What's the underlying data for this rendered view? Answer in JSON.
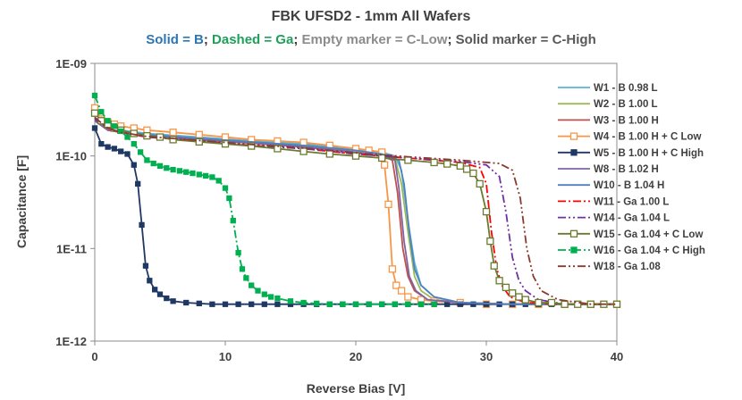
{
  "chart_data": {
    "type": "line",
    "title": "FBK UFSD2 - 1mm  All Wafers",
    "subtitle": [
      {
        "text": "Solid = B",
        "color": "#2e75b6"
      },
      {
        "text": "; ",
        "color": "#333333"
      },
      {
        "text": "Dashed = Ga",
        "color": "#1ea05a"
      },
      {
        "text": "; ",
        "color": "#333333"
      },
      {
        "text": "Empty marker = C-Low",
        "color": "#8c8c8c"
      },
      {
        "text": "; ",
        "color": "#333333"
      },
      {
        "text": "Solid marker = C-High",
        "color": "#595959"
      }
    ],
    "xlabel": "Reverse Bias [V]",
    "ylabel": "Capacitance [F]",
    "xlim": [
      0,
      40
    ],
    "ylim": [
      1e-12,
      1e-09
    ],
    "yscale": "log",
    "x_ticks": [
      0,
      10,
      20,
      30,
      40
    ],
    "x_tick_labels": [
      "0",
      "10",
      "20",
      "30",
      "40"
    ],
    "y_ticks": [
      1e-12,
      1e-11,
      1e-10,
      1e-09
    ],
    "y_tick_labels": [
      "1E-12",
      "1E-11",
      "1E-10",
      "1E-09"
    ],
    "grid": false,
    "legend_position": "right",
    "series": [
      {
        "name": "W1 - B 0.98 L",
        "color": "#5ab4d6",
        "dash": "solid",
        "marker": "none",
        "x": [
          0,
          1,
          2,
          4,
          8,
          12,
          16,
          20,
          22,
          23,
          23.5,
          24,
          24.5,
          25,
          26,
          28,
          32,
          36,
          40
        ],
        "y": [
          2.6e-10,
          2.1e-10,
          1.9e-10,
          1.75e-10,
          1.6e-10,
          1.45e-10,
          1.35e-10,
          1.2e-10,
          1.1e-10,
          1e-10,
          7e-11,
          2e-11,
          7e-12,
          4e-12,
          3e-12,
          2.6e-12,
          2.5e-12,
          2.5e-12,
          2.5e-12
        ]
      },
      {
        "name": "W2 - B 1.00 L",
        "color": "#9bbb59",
        "dash": "solid",
        "marker": "none",
        "x": [
          0,
          1,
          2,
          4,
          8,
          12,
          16,
          20,
          22,
          23,
          23.5,
          24,
          24.5,
          25,
          26,
          28,
          32,
          36,
          40
        ],
        "y": [
          2.5e-10,
          2e-10,
          1.85e-10,
          1.7e-10,
          1.55e-10,
          1.42e-10,
          1.3e-10,
          1.15e-10,
          1.05e-10,
          9.5e-11,
          5e-11,
          1.5e-11,
          5e-12,
          3.5e-12,
          2.8e-12,
          2.6e-12,
          2.5e-12,
          2.5e-12,
          2.5e-12
        ]
      },
      {
        "name": "W3 - B 1.00 H",
        "color": "#c0504d",
        "dash": "solid",
        "marker": "none",
        "x": [
          0,
          1,
          2,
          4,
          8,
          12,
          16,
          20,
          22,
          22.8,
          23.2,
          23.6,
          24,
          24.5,
          25.5,
          28,
          32,
          36,
          40
        ],
        "y": [
          2.4e-10,
          1.9e-10,
          1.8e-10,
          1.65e-10,
          1.5e-10,
          1.38e-10,
          1.25e-10,
          1.1e-10,
          1e-10,
          9e-11,
          4e-11,
          1e-11,
          5e-12,
          3.5e-12,
          2.8e-12,
          2.6e-12,
          2.5e-12,
          2.5e-12,
          2.5e-12
        ]
      },
      {
        "name": "W4 - B 1.00 H + C Low",
        "color": "#f79646",
        "dash": "solid",
        "marker": "square-open",
        "x": [
          0,
          0.5,
          1,
          1.5,
          2,
          3,
          4,
          6,
          8,
          10,
          12,
          14,
          16,
          18,
          20,
          21,
          22,
          22.2,
          22.5,
          22.8,
          23.1,
          23.5,
          24,
          25,
          26,
          28,
          30,
          32,
          34,
          36,
          38,
          40
        ],
        "y": [
          3.3e-10,
          2.5e-10,
          2.3e-10,
          2.2e-10,
          2.1e-10,
          2e-10,
          1.9e-10,
          1.8e-10,
          1.7e-10,
          1.6e-10,
          1.5e-10,
          1.45e-10,
          1.4e-10,
          1.3e-10,
          1.2e-10,
          1.15e-10,
          1.1e-10,
          8e-11,
          3e-11,
          6e-12,
          4e-12,
          3.5e-12,
          3e-12,
          2.8e-12,
          2.7e-12,
          2.6e-12,
          2.5e-12,
          2.5e-12,
          2.5e-12,
          2.5e-12,
          2.5e-12,
          2.5e-12
        ]
      },
      {
        "name": "W5 - B 1.00 H + C High",
        "color": "#1f3864",
        "dash": "solid",
        "marker": "square-filled",
        "x": [
          0,
          0.5,
          1,
          1.5,
          2,
          2.5,
          3,
          3.3,
          3.6,
          3.9,
          4.2,
          4.6,
          5,
          5.5,
          6,
          7,
          8,
          9,
          10,
          11,
          12,
          13,
          14,
          15,
          16,
          17,
          18,
          19,
          20,
          21,
          22,
          23,
          24,
          25,
          26,
          27,
          28,
          29,
          30,
          31,
          32,
          33,
          34,
          35,
          36,
          37,
          38,
          39,
          40
        ],
        "y": [
          2e-10,
          1.35e-10,
          1.25e-10,
          1.2e-10,
          1.12e-10,
          1.05e-10,
          8e-11,
          5e-11,
          1.8e-11,
          6.5e-12,
          4.5e-12,
          3.6e-12,
          3.2e-12,
          2.9e-12,
          2.7e-12,
          2.6e-12,
          2.55e-12,
          2.5e-12,
          2.5e-12,
          2.5e-12,
          2.5e-12,
          2.5e-12,
          2.5e-12,
          2.5e-12,
          2.5e-12,
          2.5e-12,
          2.5e-12,
          2.5e-12,
          2.5e-12,
          2.5e-12,
          2.5e-12,
          2.5e-12,
          2.5e-12,
          2.5e-12,
          2.5e-12,
          2.5e-12,
          2.5e-12,
          2.5e-12,
          2.5e-12,
          2.5e-12,
          2.5e-12,
          2.5e-12,
          2.5e-12,
          2.5e-12,
          2.5e-12,
          2.5e-12,
          2.5e-12,
          2.5e-12,
          2.5e-12
        ]
      },
      {
        "name": "W8 - B 1.02 H",
        "color": "#8064a2",
        "dash": "solid",
        "marker": "none",
        "x": [
          0,
          1,
          2,
          4,
          8,
          12,
          16,
          20,
          22,
          23,
          23.3,
          23.7,
          24.1,
          24.6,
          25.5,
          28,
          32,
          36,
          40
        ],
        "y": [
          2.4e-10,
          1.9e-10,
          1.8e-10,
          1.65e-10,
          1.5e-10,
          1.38e-10,
          1.25e-10,
          1.1e-10,
          1e-10,
          9e-11,
          4.5e-11,
          1.2e-11,
          5e-12,
          3.5e-12,
          2.8e-12,
          2.6e-12,
          2.5e-12,
          2.5e-12,
          2.5e-12
        ]
      },
      {
        "name": "W10 - B 1.04 H",
        "color": "#4f81bd",
        "dash": "solid",
        "marker": "none",
        "x": [
          0,
          1,
          2,
          4,
          8,
          12,
          16,
          20,
          22,
          23.3,
          23.7,
          24.1,
          24.5,
          25,
          26,
          28,
          32,
          36,
          40
        ],
        "y": [
          2.5e-10,
          2e-10,
          1.85e-10,
          1.7e-10,
          1.55e-10,
          1.42e-10,
          1.3e-10,
          1.15e-10,
          1.05e-10,
          9e-11,
          5e-11,
          1.5e-11,
          6e-12,
          4e-12,
          3e-12,
          2.6e-12,
          2.5e-12,
          2.5e-12,
          2.5e-12
        ]
      },
      {
        "name": "W11 - Ga 1.00 L",
        "color": "#ff0000",
        "dash": "dashdot",
        "marker": "none",
        "x": [
          0,
          1,
          2,
          4,
          8,
          12,
          16,
          20,
          24,
          28,
          29.5,
          30,
          30.4,
          30.8,
          31.2,
          31.8,
          33,
          36,
          40
        ],
        "y": [
          2.6e-10,
          2e-10,
          1.8e-10,
          1.6e-10,
          1.45e-10,
          1.3e-10,
          1.2e-10,
          1.05e-10,
          9.5e-11,
          8.5e-11,
          7.5e-11,
          5e-11,
          1.5e-11,
          6e-12,
          4e-12,
          3e-12,
          2.6e-12,
          2.5e-12,
          2.5e-12
        ]
      },
      {
        "name": "W14 - Ga 1.04 L",
        "color": "#7030a0",
        "dash": "dashdotdot",
        "marker": "none",
        "x": [
          0,
          1,
          2,
          4,
          8,
          12,
          16,
          20,
          24,
          28,
          30,
          31,
          31.5,
          32,
          32.5,
          33,
          34,
          36,
          40
        ],
        "y": [
          2.5e-10,
          2e-10,
          1.8e-10,
          1.6e-10,
          1.45e-10,
          1.3e-10,
          1.2e-10,
          1.05e-10,
          9.5e-11,
          8.7e-11,
          8e-11,
          6e-11,
          2.5e-11,
          8e-12,
          4.5e-12,
          3.5e-12,
          2.8e-12,
          2.5e-12,
          2.5e-12
        ]
      },
      {
        "name": "W15 - Ga 1.04 + C Low",
        "color": "#6b7a2e",
        "dash": "solid",
        "marker": "square-open",
        "x": [
          0,
          0.5,
          1,
          1.5,
          2,
          3,
          4,
          5,
          6,
          8,
          10,
          12,
          14,
          16,
          18,
          20,
          22,
          24,
          26,
          27,
          28,
          28.5,
          29,
          29.5,
          30,
          30.3,
          30.6,
          31,
          31.5,
          32,
          32.5,
          33,
          34,
          35,
          36,
          37,
          38,
          39,
          40
        ],
        "y": [
          2.9e-10,
          2.4e-10,
          2.2e-10,
          2e-10,
          1.9e-10,
          1.75e-10,
          1.65e-10,
          1.6e-10,
          1.5e-10,
          1.42e-10,
          1.35e-10,
          1.28e-10,
          1.2e-10,
          1.12e-10,
          1.05e-10,
          1e-10,
          9.5e-11,
          9e-11,
          8.5e-11,
          8.2e-11,
          7.8e-11,
          7.2e-11,
          6.5e-11,
          5e-11,
          2.5e-11,
          1.2e-11,
          6.5e-12,
          4.5e-12,
          3.8e-12,
          3.3e-12,
          3e-12,
          2.8e-12,
          2.6e-12,
          2.6e-12,
          2.5e-12,
          2.5e-12,
          2.5e-12,
          2.5e-12,
          2.5e-12
        ]
      },
      {
        "name": "W16 - Ga 1.04 + C High",
        "color": "#00b050",
        "dash": "dashdot",
        "marker": "square-filled",
        "x": [
          0,
          0.5,
          1,
          1.5,
          2,
          2.5,
          3,
          3.5,
          4,
          4.5,
          5,
          5.5,
          6,
          6.5,
          7,
          7.5,
          8,
          8.5,
          9,
          9.5,
          10,
          10.3,
          10.6,
          11,
          11.3,
          11.6,
          12,
          12.5,
          13,
          13.5,
          14,
          15,
          16,
          17,
          18,
          19,
          20,
          21,
          22,
          23,
          24,
          25,
          26
        ],
        "y": [
          4.5e-10,
          3e-10,
          2.4e-10,
          2.1e-10,
          1.85e-10,
          1.6e-10,
          1.35e-10,
          1.1e-10,
          9e-11,
          8.3e-11,
          7.8e-11,
          7.4e-11,
          7.1e-11,
          6.9e-11,
          6.7e-11,
          6.5e-11,
          6.3e-11,
          6.1e-11,
          5.9e-11,
          5.4e-11,
          4.5e-11,
          3.5e-11,
          2e-11,
          9e-12,
          6e-12,
          4.8e-12,
          4e-12,
          3.5e-12,
          3.2e-12,
          3e-12,
          2.9e-12,
          2.7e-12,
          2.6e-12,
          2.55e-12,
          2.5e-12,
          2.5e-12,
          2.5e-12,
          2.5e-12,
          2.5e-12,
          2.5e-12,
          2.5e-12,
          2.5e-12,
          2.5e-12
        ]
      },
      {
        "name": "W18 - Ga 1.08",
        "color": "#8b3a2f",
        "dash": "dashdotdot",
        "marker": "none",
        "x": [
          0,
          1,
          2,
          4,
          8,
          12,
          16,
          20,
          24,
          28,
          31,
          32,
          32.6,
          33.1,
          33.6,
          34.2,
          35.5,
          38,
          40
        ],
        "y": [
          2.6e-10,
          2e-10,
          1.8e-10,
          1.62e-10,
          1.47e-10,
          1.33e-10,
          1.22e-10,
          1.08e-10,
          9.8e-11,
          9e-11,
          8.3e-11,
          7e-11,
          3.5e-11,
          1e-11,
          5e-12,
          3.5e-12,
          2.8e-12,
          2.5e-12,
          2.5e-12
        ]
      }
    ]
  }
}
